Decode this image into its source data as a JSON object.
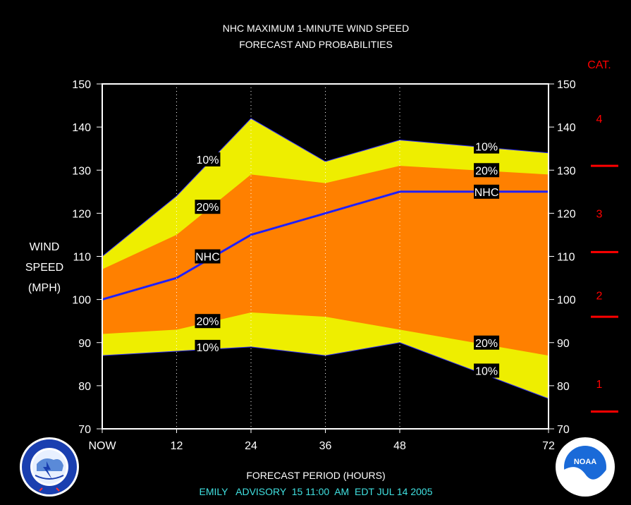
{
  "title_line1": "NHC MAXIMUM 1-MINUTE WIND SPEED",
  "title_line2": "FORECAST AND PROBABILITIES",
  "ylabel_lines": [
    "WIND",
    "SPEED",
    "(MPH)"
  ],
  "xlabel": "FORECAST PERIOD (HOURS)",
  "footer": "EMILY   ADVISORY  15 11:00  AM  EDT JUL 14 2005",
  "category_header": "CAT.",
  "colors": {
    "background": "#000000",
    "outer_band": "#eeee00",
    "inner_band": "#ff8000",
    "forecast_line": "#2020ff",
    "category": "#ff0000",
    "footer": "#40e0e0",
    "text": "#ffffff"
  },
  "icons": [
    "nws-logo-icon",
    "noaa-logo-icon"
  ],
  "chart_data": {
    "type": "area",
    "x_tick_labels": [
      "NOW",
      "12",
      "24",
      "36",
      "48",
      "72"
    ],
    "x_tick_hours": [
      0,
      12,
      24,
      36,
      48,
      72
    ],
    "xlim": [
      0,
      72
    ],
    "ylim": [
      70,
      150
    ],
    "y_ticks": [
      70,
      80,
      90,
      100,
      110,
      120,
      130,
      140,
      150
    ],
    "grid": "vertical dotted at x ticks",
    "x": [
      0,
      12,
      24,
      36,
      48,
      72
    ],
    "series": [
      {
        "name": "10%",
        "role": "upper_10",
        "values": [
          110,
          124,
          142,
          132,
          137,
          134
        ]
      },
      {
        "name": "20%",
        "role": "upper_20",
        "values": [
          107,
          115,
          129,
          127,
          131,
          129
        ]
      },
      {
        "name": "NHC",
        "role": "forecast",
        "values": [
          100,
          105,
          115,
          120,
          125,
          125
        ]
      },
      {
        "name": "20%",
        "role": "lower_20",
        "values": [
          92,
          93,
          97,
          96,
          93,
          87
        ]
      },
      {
        "name": "10%",
        "role": "lower_10",
        "values": [
          87,
          88,
          89,
          87,
          90,
          77
        ]
      }
    ],
    "series_labels": [
      {
        "text": "10%",
        "x": 17,
        "y": 132.5
      },
      {
        "text": "20%",
        "x": 17,
        "y": 121.5
      },
      {
        "text": "NHC",
        "x": 17,
        "y": 110
      },
      {
        "text": "20%",
        "x": 17,
        "y": 95
      },
      {
        "text": "10%",
        "x": 17,
        "y": 89
      },
      {
        "text": "10%",
        "x": 62,
        "y": 135.5
      },
      {
        "text": "20%",
        "x": 62,
        "y": 130
      },
      {
        "text": "NHC",
        "x": 62,
        "y": 125
      },
      {
        "text": "20%",
        "x": 62,
        "y": 90
      },
      {
        "text": "10%",
        "x": 62,
        "y": 83.5
      }
    ],
    "categories_scale": [
      {
        "label": "1",
        "y": 80.5
      },
      {
        "label": "2",
        "y": 101
      },
      {
        "label": "3",
        "y": 120
      },
      {
        "label": "4",
        "y": 142
      }
    ],
    "category_thresholds": [
      74,
      96,
      111,
      131
    ]
  }
}
